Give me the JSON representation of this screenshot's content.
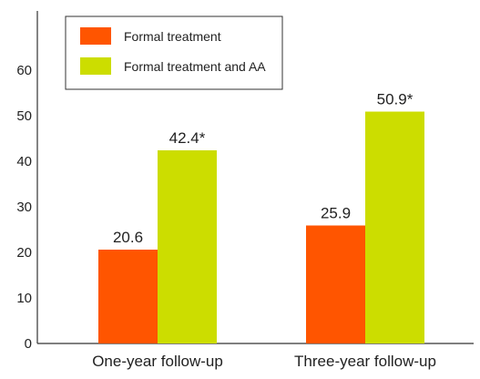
{
  "chart_data": {
    "type": "bar",
    "categories": [
      "One-year follow-up",
      "Three-year follow-up"
    ],
    "series": [
      {
        "name": "Formal treatment",
        "color": "#ff5500",
        "values": [
          20.6,
          25.9
        ],
        "labels": [
          "20.6",
          "25.9"
        ]
      },
      {
        "name": "Formal treatment and AA",
        "color": "#ccdd00",
        "values": [
          42.4,
          50.9
        ],
        "labels": [
          "42.4*",
          "50.9*"
        ]
      }
    ],
    "yticks": [
      "0",
      "10",
      "20",
      "30",
      "40",
      "50",
      "60"
    ],
    "ylim": [
      0,
      70
    ],
    "grid": false,
    "legend_position": "top-left"
  }
}
